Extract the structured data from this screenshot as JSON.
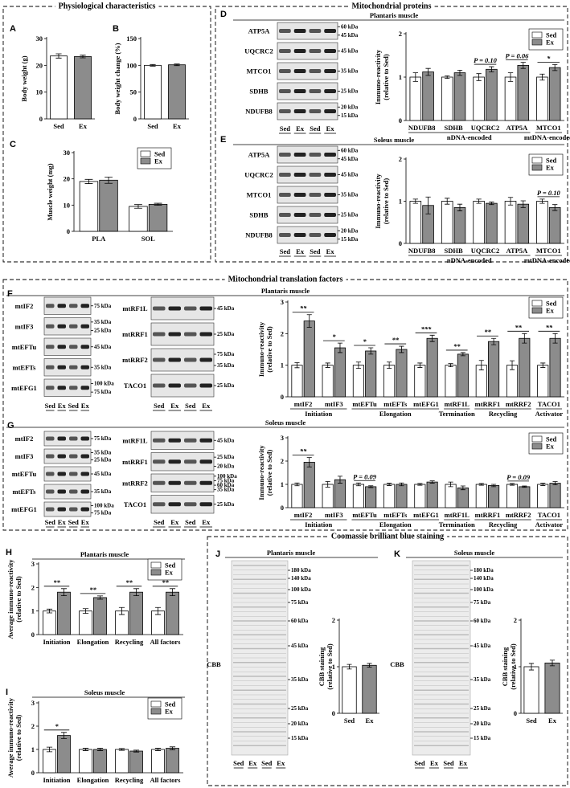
{
  "sections": [
    "Physiological characteristics",
    "Mitochondrial proteins",
    "Mitochondrial translation factors",
    "Coomassie brilliant blue staining"
  ],
  "blots": [
    {
      "rows": [
        {
          "label": "ATP5A",
          "markers": [
            "60 kDa",
            "45 kDa"
          ]
        },
        {
          "label": "UQCRC2",
          "markers": [
            "45 kDa"
          ]
        },
        {
          "label": "MTCO1",
          "markers": [
            "35 kDa"
          ]
        },
        {
          "label": "SDHB",
          "markers": [
            "25 kDa"
          ]
        },
        {
          "label": "NDUFB8",
          "markers": [
            "20 kDa",
            "15 kDa"
          ]
        }
      ],
      "lanes": [
        "Sed",
        "Ex",
        "Sed",
        "Ex"
      ]
    },
    {
      "rows": [
        {
          "label": "ATP5A",
          "markers": [
            "60 kDa",
            "45 kDa"
          ]
        },
        {
          "label": "UQCRC2",
          "markers": [
            "45 kDa"
          ]
        },
        {
          "label": "MTCO1",
          "markers": [
            "35 kDa"
          ]
        },
        {
          "label": "SDHB",
          "markers": [
            "25 kDa"
          ]
        },
        {
          "label": "NDUFB8",
          "markers": [
            "20 kDa",
            "15 kDa"
          ]
        }
      ],
      "lanes": [
        "Sed",
        "Ex",
        "Sed",
        "Ex"
      ]
    },
    {
      "rows": [
        {
          "label": "mtIF2",
          "markers": [
            "75 kDa"
          ]
        },
        {
          "label": "mtIF3",
          "markers": [
            "35 kDa",
            "25 kDa"
          ]
        },
        {
          "label": "mtEFTu",
          "markers": [
            "45 kDa"
          ]
        },
        {
          "label": "mtEFTs",
          "markers": [
            "35 kDa"
          ]
        },
        {
          "label": "mtEFG1",
          "markers": [
            "100 kDa",
            "75 kDa"
          ]
        }
      ],
      "lanes": [
        "Sed",
        "Ex",
        "Sed",
        "Ex"
      ]
    },
    {
      "rows": [
        {
          "label": "mtRF1L",
          "markers": [
            "45 kDa"
          ]
        },
        {
          "label": "mtRRF1",
          "markers": [
            "25 kDa"
          ]
        },
        {
          "label": "mtRRF2",
          "markers": [
            "75 kDa",
            "35 kDa"
          ]
        },
        {
          "label": "TACO1",
          "markers": [
            "25 kDa"
          ]
        }
      ],
      "lanes": [
        "Sed",
        "Ex",
        "Sed",
        "Ex"
      ]
    },
    {
      "rows": [
        {
          "label": "mtIF2",
          "markers": [
            "75 kDa"
          ]
        },
        {
          "label": "mtIF3",
          "markers": [
            "35 kDa",
            "25 kDa"
          ]
        },
        {
          "label": "mtEFTu",
          "markers": [
            "45 kDa"
          ]
        },
        {
          "label": "mtEFTs",
          "markers": [
            "35 kDa"
          ]
        },
        {
          "label": "mtEFG1",
          "markers": [
            "100 kDa",
            "75 kDa"
          ]
        }
      ],
      "lanes": [
        "Sed",
        "Ex",
        "Sed",
        "Ex"
      ]
    },
    {
      "rows": [
        {
          "label": "mtRF1L",
          "markers": [
            "45 kDa"
          ]
        },
        {
          "label": "mtRRF1",
          "markers": [
            "25 kDa",
            "20 kDa"
          ]
        },
        {
          "label": "mtRRF2",
          "markers": [
            "100 kDa",
            "75 kDa",
            "60 kDa",
            "35 kDa"
          ]
        },
        {
          "label": "TACO1",
          "markers": [
            "25 kDa"
          ]
        }
      ],
      "lanes": [
        "Sed",
        "Ex",
        "Sed",
        "Ex"
      ]
    }
  ],
  "gels": [
    {
      "label": "CBB",
      "markers": [
        "180 kDa",
        "140 kDa",
        "100 kDa",
        "75 kDa",
        "60 kDa",
        "45 kDa",
        "35 kDa",
        "25 kDa",
        "20 kDa",
        "15 kDa"
      ],
      "lanes": [
        "Sed",
        "Ex",
        "Sed",
        "Ex"
      ]
    },
    {
      "label": "CBB",
      "markers": [
        "180 kDa",
        "140 kDa",
        "100 kDa",
        "75 kDa",
        "60 kDa",
        "45 kDa",
        "35 kDa",
        "25 kDa",
        "20 kDa",
        "15 kDa"
      ],
      "lanes": [
        "Sed",
        "Ex",
        "Sed",
        "Ex"
      ]
    }
  ],
  "chart_data": [
    {
      "type": "bar",
      "panel": "A",
      "ylabel": [
        "Body weight (g)"
      ],
      "categories": [
        "Sed",
        "Ex"
      ],
      "values": [
        23.5,
        23.3
      ],
      "errors": [
        0.8,
        0.5
      ],
      "colors": [
        "#ffffff",
        "#8c8c8c"
      ],
      "ylim": [
        0,
        30
      ],
      "yticks": [
        0,
        10,
        20,
        30
      ]
    },
    {
      "type": "bar",
      "panel": "B",
      "ylabel": [
        "Body weight change (%)"
      ],
      "categories": [
        "Sed",
        "Ex"
      ],
      "values": [
        100,
        101
      ],
      "errors": [
        1.5,
        1.5
      ],
      "colors": [
        "#ffffff",
        "#8c8c8c"
      ],
      "ylim": [
        0,
        150
      ],
      "yticks": [
        0,
        50,
        100,
        150
      ]
    },
    {
      "type": "bar",
      "panel": "C",
      "ylabel": [
        "Muscle weight (mg)"
      ],
      "categories": [
        "PLA",
        "SOL"
      ],
      "series": [
        {
          "name": "Sed",
          "color": "#ffffff",
          "values": [
            19,
            9.5
          ],
          "errors": [
            0.8,
            0.7
          ]
        },
        {
          "name": "Ex",
          "color": "#8c8c8c",
          "values": [
            19.5,
            10.3
          ],
          "errors": [
            1.2,
            0.4
          ]
        }
      ],
      "ylim": [
        0,
        30
      ],
      "yticks": [
        0,
        10,
        20,
        30
      ],
      "legend": "upper right"
    },
    {
      "type": "bar",
      "panel": "D",
      "subtitle": "Plantaris muscle",
      "ylabel": [
        "Immuno-reactivity",
        "(relative to Sed)"
      ],
      "categories": [
        "NDUFB8",
        "SDHB",
        "UQCRC2",
        "ATP5A",
        "MTCO1"
      ],
      "series": [
        {
          "name": "Sed",
          "color": "#ffffff",
          "values": [
            1,
            1,
            1,
            1,
            1
          ],
          "errors": [
            0.1,
            0.03,
            0.08,
            0.1,
            0.07
          ]
        },
        {
          "name": "Ex",
          "color": "#8c8c8c",
          "values": [
            1.12,
            1.1,
            1.18,
            1.27,
            1.22
          ],
          "errors": [
            0.08,
            0.06,
            0.06,
            0.07,
            0.07
          ]
        }
      ],
      "annotations": [
        null,
        null,
        "P = 0.10",
        "P = 0.06",
        "*"
      ],
      "groups": [
        {
          "label": "nDNA-encoded",
          "members": [
            "NDUFB8",
            "SDHB",
            "UQCRC2",
            "ATP5A"
          ]
        },
        {
          "label": "mtDNA-encoded",
          "members": [
            "MTCO1"
          ]
        }
      ],
      "ylim": [
        0,
        2
      ],
      "yticks": [
        0,
        1,
        2
      ],
      "legend": "upper right"
    },
    {
      "type": "bar",
      "panel": "E",
      "subtitle": "Soleus muscle",
      "ylabel": [
        "Immuno-reactivity",
        "(relative to Sed)"
      ],
      "categories": [
        "NDUFB8",
        "SDHB",
        "UQCRC2",
        "ATP5A",
        "MTCO1"
      ],
      "series": [
        {
          "name": "Sed",
          "color": "#ffffff",
          "values": [
            1,
            1,
            1,
            1,
            1
          ],
          "errors": [
            0.05,
            0.07,
            0.05,
            0.09,
            0.05
          ]
        },
        {
          "name": "Ex",
          "color": "#8c8c8c",
          "values": [
            0.9,
            0.85,
            0.95,
            0.93,
            0.85
          ],
          "errors": [
            0.2,
            0.08,
            0.03,
            0.08,
            0.07
          ]
        }
      ],
      "annotations": [
        null,
        null,
        null,
        null,
        "P = 0.10"
      ],
      "groups": [
        {
          "label": "nDNA-encoded",
          "members": [
            "NDUFB8",
            "SDHB",
            "UQCRC2",
            "ATP5A"
          ]
        },
        {
          "label": "mtDNA-encoded",
          "members": [
            "MTCO1"
          ]
        }
      ],
      "ylim": [
        0,
        2
      ],
      "yticks": [
        0,
        1,
        2
      ],
      "legend": "upper right"
    },
    {
      "type": "bar",
      "panel": "F",
      "subtitle": "Plantaris muscle",
      "ylabel": [
        "Immuno-reactivity",
        "(relative to Sed)"
      ],
      "categories": [
        "mtIF2",
        "mtIF3",
        "mtEFTu",
        "mtEFTs",
        "mtEFG1",
        "mtRF1L",
        "mtRRF1",
        "mtRRF2",
        "TACO1"
      ],
      "series": [
        {
          "name": "Sed",
          "color": "#ffffff",
          "values": [
            1,
            1,
            1,
            1,
            1,
            1,
            1,
            1,
            1
          ],
          "errors": [
            0.08,
            0.07,
            0.1,
            0.1,
            0.07,
            0.05,
            0.15,
            0.14,
            0.07
          ]
        },
        {
          "name": "Ex",
          "color": "#8c8c8c",
          "values": [
            2.4,
            1.55,
            1.45,
            1.5,
            1.85,
            1.35,
            1.75,
            1.85,
            1.85
          ],
          "errors": [
            0.2,
            0.15,
            0.1,
            0.1,
            0.1,
            0.05,
            0.1,
            0.15,
            0.15
          ]
        }
      ],
      "annotations": [
        "**",
        "*",
        "*",
        "**",
        "***",
        "**",
        "**",
        "**",
        "**"
      ],
      "groups": [
        {
          "label": "Initiation",
          "members": [
            "mtIF2",
            "mtIF3"
          ]
        },
        {
          "label": "Elongation",
          "members": [
            "mtEFTu",
            "mtEFTs",
            "mtEFG1"
          ]
        },
        {
          "label": "Termination",
          "members": [
            "mtRF1L"
          ]
        },
        {
          "label": "Recycling",
          "members": [
            "mtRRF1",
            "mtRRF2"
          ]
        },
        {
          "label": "Activator",
          "members": [
            "TACO1"
          ]
        }
      ],
      "ylim": [
        0,
        3
      ],
      "yticks": [
        0,
        1,
        2,
        3
      ],
      "legend": "upper right"
    },
    {
      "type": "bar",
      "panel": "G",
      "subtitle": "Soleus muscle",
      "ylabel": [
        "Immuno-reactivity",
        "(relative to Sed)"
      ],
      "categories": [
        "mtIF2",
        "mtIF3",
        "mtEFTu",
        "mtEFTs",
        "mtEFG1",
        "mtRF1L",
        "mtRRF1",
        "mtRRF2",
        "TACO1"
      ],
      "series": [
        {
          "name": "Sed",
          "color": "#ffffff",
          "values": [
            1,
            1,
            1,
            1,
            1,
            1,
            1,
            1,
            1
          ],
          "errors": [
            0.06,
            0.12,
            0.06,
            0.05,
            0.04,
            0.1,
            0.04,
            0.04,
            0.05
          ]
        },
        {
          "name": "Ex",
          "color": "#8c8c8c",
          "values": [
            1.95,
            1.2,
            0.9,
            1.0,
            1.1,
            0.85,
            0.95,
            0.9,
            1.05
          ],
          "errors": [
            0.2,
            0.15,
            0.04,
            0.06,
            0.05,
            0.08,
            0.05,
            0.03,
            0.07
          ]
        }
      ],
      "annotations": [
        "**",
        null,
        "P = 0.09",
        null,
        null,
        null,
        null,
        "P = 0.09",
        null
      ],
      "groups": [
        {
          "label": "Initiation",
          "members": [
            "mtIF2",
            "mtIF3"
          ]
        },
        {
          "label": "Elongation",
          "members": [
            "mtEFTu",
            "mtEFTs",
            "mtEFG1"
          ]
        },
        {
          "label": "Termination",
          "members": [
            "mtRF1L"
          ]
        },
        {
          "label": "Recycling",
          "members": [
            "mtRRF1",
            "mtRRF2"
          ]
        },
        {
          "label": "Activator",
          "members": [
            "TACO1"
          ]
        }
      ],
      "ylim": [
        0,
        3
      ],
      "yticks": [
        0,
        1,
        2,
        3
      ],
      "legend": "upper right"
    },
    {
      "type": "bar",
      "panel": "H",
      "subtitle": "Plantaris muscle",
      "ylabel": [
        "Average immuno-reactivity",
        "(relative to Sed)"
      ],
      "categories": [
        "Initiation",
        "Elongation",
        "Recycling",
        "All factors"
      ],
      "series": [
        {
          "name": "Sed",
          "color": "#ffffff",
          "values": [
            1,
            1,
            1,
            1
          ],
          "errors": [
            0.08,
            0.1,
            0.15,
            0.15
          ]
        },
        {
          "name": "Ex",
          "color": "#8c8c8c",
          "values": [
            1.8,
            1.57,
            1.8,
            1.8
          ],
          "errors": [
            0.15,
            0.07,
            0.15,
            0.15
          ]
        }
      ],
      "annotations": [
        "**",
        "**",
        "**",
        "**"
      ],
      "ylim": [
        0,
        3
      ],
      "yticks": [
        0,
        1,
        2,
        3
      ],
      "legend": "upper right"
    },
    {
      "type": "bar",
      "panel": "I",
      "subtitle": "Soleus muscle",
      "ylabel": [
        "Average immuno-reactivity",
        "(relative to Sed)"
      ],
      "categories": [
        "Initiation",
        "Elongation",
        "Recycling",
        "All factors"
      ],
      "series": [
        {
          "name": "Sed",
          "color": "#ffffff",
          "values": [
            1,
            1,
            1,
            1
          ],
          "errors": [
            0.1,
            0.05,
            0.04,
            0.05
          ]
        },
        {
          "name": "Ex",
          "color": "#8c8c8c",
          "values": [
            1.6,
            1.0,
            0.93,
            1.05
          ],
          "errors": [
            0.13,
            0.05,
            0.04,
            0.06
          ]
        }
      ],
      "annotations": [
        "*",
        null,
        null,
        null
      ],
      "ylim": [
        0,
        3
      ],
      "yticks": [
        0,
        1,
        2,
        3
      ],
      "legend": "upper right"
    },
    {
      "type": "bar",
      "panel": "J",
      "subtitle": "Plantaris muscle",
      "ylabel": [
        "CBB staining",
        "(relative to Sed)"
      ],
      "categories": [
        "Sed",
        "Ex"
      ],
      "values": [
        1,
        1.03
      ],
      "errors": [
        0.05,
        0.04
      ],
      "colors": [
        "#ffffff",
        "#8c8c8c"
      ],
      "ylim": [
        0,
        2
      ],
      "yticks": [
        0,
        1,
        2
      ]
    },
    {
      "type": "bar",
      "panel": "K",
      "subtitle": "Soleus muscle",
      "ylabel": [
        "CBB staining",
        "(relative to Sed)"
      ],
      "categories": [
        "Sed",
        "Ex"
      ],
      "values": [
        1,
        1.08
      ],
      "errors": [
        0.07,
        0.06
      ],
      "colors": [
        "#ffffff",
        "#8c8c8c"
      ],
      "ylim": [
        0,
        2
      ],
      "yticks": [
        0,
        1,
        2
      ]
    }
  ]
}
